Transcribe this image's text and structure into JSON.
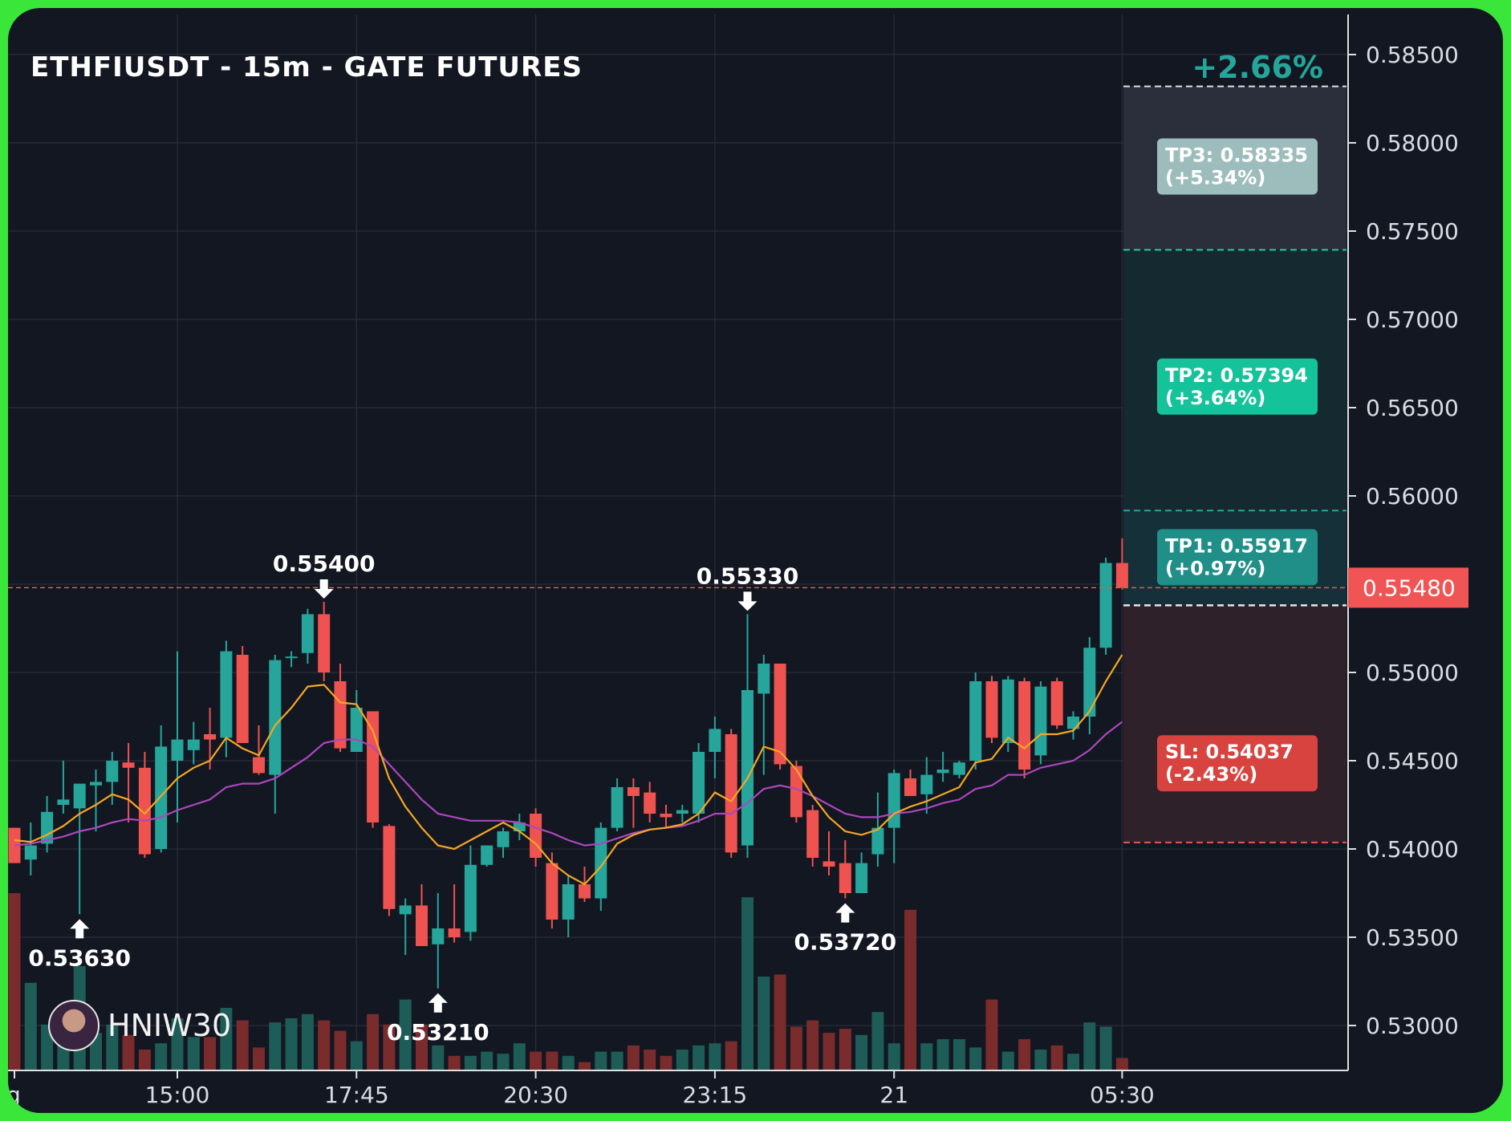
{
  "header": {
    "title": "ETHFIUSDT - 15m - GATE FUTURES",
    "change_pct": "+2.66%"
  },
  "brand": {
    "name": "HNIW30",
    "avatar_icon": "avatar-icon"
  },
  "colors": {
    "bg": "#131722",
    "up": "#26a69a",
    "down": "#ef5350",
    "ma_fast": "#f5a623",
    "ma_slow": "#ab47bc",
    "tp1": "#1f8f87",
    "tp2": "#15c39a",
    "tp3": "#9dbdbc",
    "sl": "#d9433f"
  },
  "chart_data": {
    "type": "candlestick",
    "title": "ETHFIUSDT - 15m - GATE FUTURES",
    "y_ticks": [
      "0.53000",
      "0.53500",
      "0.54000",
      "0.54500",
      "0.55000",
      "0.55500",
      "0.56000",
      "0.56500",
      "0.57000",
      "0.57500",
      "0.58000",
      "0.58500"
    ],
    "ylim": [
      0.5275,
      0.5872
    ],
    "x_tick_labels": [
      {
        "label": "g",
        "index": 0
      },
      {
        "label": "15:00",
        "index": 10
      },
      {
        "label": "17:45",
        "index": 21
      },
      {
        "label": "20:30",
        "index": 32
      },
      {
        "label": "23:15",
        "index": 43
      },
      {
        "label": "21",
        "index": 54
      },
      {
        "label": "05:30",
        "index": 68
      }
    ],
    "current_price": "0.55480",
    "current_price_value": 0.5548,
    "targets": [
      {
        "label": "TP3: 0.58335",
        "pct": "(+5.34%)",
        "value": 0.58335
      },
      {
        "label": "TP2: 0.57394",
        "pct": "(+3.64%)",
        "value": 0.57394
      },
      {
        "label": "TP1: 0.55917",
        "pct": "(+0.97%)",
        "value": 0.55917
      },
      {
        "label": "SL: 0.54037",
        "pct": "(-2.43%)",
        "value": 0.54037
      }
    ],
    "entry_value": 0.5538,
    "top_line_value": 0.5832,
    "annotations": [
      {
        "text": "0.53630",
        "index": 4,
        "value": 0.5363,
        "dir": "low"
      },
      {
        "text": "0.55400",
        "index": 19,
        "value": 0.554,
        "dir": "high"
      },
      {
        "text": "0.53210",
        "index": 26,
        "value": 0.5321,
        "dir": "low"
      },
      {
        "text": "0.55330",
        "index": 45,
        "value": 0.5533,
        "dir": "high"
      },
      {
        "text": "0.53720",
        "index": 51,
        "value": 0.5372,
        "dir": "low"
      }
    ],
    "candles": [
      {
        "o": 0.5412,
        "h": 0.5412,
        "l": 0.5392,
        "c": 0.5392
      },
      {
        "o": 0.5394,
        "h": 0.5415,
        "l": 0.5385,
        "c": 0.5402
      },
      {
        "o": 0.5403,
        "h": 0.543,
        "l": 0.5398,
        "c": 0.5421
      },
      {
        "o": 0.5425,
        "h": 0.545,
        "l": 0.542,
        "c": 0.5428
      },
      {
        "o": 0.5423,
        "h": 0.5435,
        "l": 0.5363,
        "c": 0.5437
      },
      {
        "o": 0.5436,
        "h": 0.5445,
        "l": 0.541,
        "c": 0.5438
      },
      {
        "o": 0.5438,
        "h": 0.5455,
        "l": 0.5425,
        "c": 0.545
      },
      {
        "o": 0.5449,
        "h": 0.546,
        "l": 0.5415,
        "c": 0.5446
      },
      {
        "o": 0.5446,
        "h": 0.5455,
        "l": 0.5395,
        "c": 0.5397
      },
      {
        "o": 0.54,
        "h": 0.547,
        "l": 0.5398,
        "c": 0.5458
      },
      {
        "o": 0.545,
        "h": 0.5512,
        "l": 0.5415,
        "c": 0.5462
      },
      {
        "o": 0.5456,
        "h": 0.5472,
        "l": 0.5448,
        "c": 0.5462
      },
      {
        "o": 0.5465,
        "h": 0.548,
        "l": 0.5445,
        "c": 0.5462
      },
      {
        "o": 0.5463,
        "h": 0.5518,
        "l": 0.5452,
        "c": 0.5512
      },
      {
        "o": 0.551,
        "h": 0.5515,
        "l": 0.546,
        "c": 0.546
      },
      {
        "o": 0.5452,
        "h": 0.547,
        "l": 0.5442,
        "c": 0.5443
      },
      {
        "o": 0.5442,
        "h": 0.551,
        "l": 0.542,
        "c": 0.5507
      },
      {
        "o": 0.5509,
        "h": 0.5512,
        "l": 0.5503,
        "c": 0.5509
      },
      {
        "o": 0.5511,
        "h": 0.5536,
        "l": 0.5505,
        "c": 0.5533
      },
      {
        "o": 0.5533,
        "h": 0.554,
        "l": 0.5495,
        "c": 0.55
      },
      {
        "o": 0.5495,
        "h": 0.5505,
        "l": 0.5455,
        "c": 0.5457
      },
      {
        "o": 0.5455,
        "h": 0.549,
        "l": 0.5455,
        "c": 0.548
      },
      {
        "o": 0.5478,
        "h": 0.5478,
        "l": 0.5412,
        "c": 0.5415
      },
      {
        "o": 0.5413,
        "h": 0.5414,
        "l": 0.5362,
        "c": 0.5366
      },
      {
        "o": 0.5363,
        "h": 0.5372,
        "l": 0.534,
        "c": 0.5368
      },
      {
        "o": 0.5368,
        "h": 0.538,
        "l": 0.5345,
        "c": 0.5345
      },
      {
        "o": 0.5346,
        "h": 0.5375,
        "l": 0.5321,
        "c": 0.5355
      },
      {
        "o": 0.5355,
        "h": 0.538,
        "l": 0.5347,
        "c": 0.535
      },
      {
        "o": 0.5353,
        "h": 0.5402,
        "l": 0.5348,
        "c": 0.5391
      },
      {
        "o": 0.5391,
        "h": 0.5402,
        "l": 0.539,
        "c": 0.5402
      },
      {
        "o": 0.5401,
        "h": 0.5412,
        "l": 0.5395,
        "c": 0.541
      },
      {
        "o": 0.541,
        "h": 0.542,
        "l": 0.5405,
        "c": 0.5415
      },
      {
        "o": 0.542,
        "h": 0.5423,
        "l": 0.539,
        "c": 0.5395
      },
      {
        "o": 0.5392,
        "h": 0.5398,
        "l": 0.5355,
        "c": 0.536
      },
      {
        "o": 0.536,
        "h": 0.5385,
        "l": 0.535,
        "c": 0.538
      },
      {
        "o": 0.538,
        "h": 0.539,
        "l": 0.537,
        "c": 0.5372
      },
      {
        "o": 0.5372,
        "h": 0.5415,
        "l": 0.5365,
        "c": 0.5412
      },
      {
        "o": 0.5412,
        "h": 0.544,
        "l": 0.541,
        "c": 0.5435
      },
      {
        "o": 0.5435,
        "h": 0.544,
        "l": 0.5412,
        "c": 0.543
      },
      {
        "o": 0.5432,
        "h": 0.5438,
        "l": 0.5415,
        "c": 0.542
      },
      {
        "o": 0.542,
        "h": 0.5425,
        "l": 0.5412,
        "c": 0.5418
      },
      {
        "o": 0.542,
        "h": 0.5425,
        "l": 0.5415,
        "c": 0.5422
      },
      {
        "o": 0.542,
        "h": 0.546,
        "l": 0.5415,
        "c": 0.5455
      },
      {
        "o": 0.5455,
        "h": 0.5475,
        "l": 0.544,
        "c": 0.5468
      },
      {
        "o": 0.5465,
        "h": 0.5468,
        "l": 0.5395,
        "c": 0.5398
      },
      {
        "o": 0.5402,
        "h": 0.5533,
        "l": 0.5395,
        "c": 0.549
      },
      {
        "o": 0.5488,
        "h": 0.551,
        "l": 0.5442,
        "c": 0.5505
      },
      {
        "o": 0.5505,
        "h": 0.5505,
        "l": 0.5445,
        "c": 0.5448
      },
      {
        "o": 0.5447,
        "h": 0.545,
        "l": 0.5415,
        "c": 0.5418
      },
      {
        "o": 0.5422,
        "h": 0.5425,
        "l": 0.539,
        "c": 0.5395
      },
      {
        "o": 0.5393,
        "h": 0.541,
        "l": 0.5385,
        "c": 0.539
      },
      {
        "o": 0.5392,
        "h": 0.5405,
        "l": 0.5372,
        "c": 0.5375
      },
      {
        "o": 0.5375,
        "h": 0.5398,
        "l": 0.5375,
        "c": 0.5392
      },
      {
        "o": 0.5397,
        "h": 0.5432,
        "l": 0.539,
        "c": 0.5412
      },
      {
        "o": 0.5412,
        "h": 0.5445,
        "l": 0.5392,
        "c": 0.5443
      },
      {
        "o": 0.544,
        "h": 0.5445,
        "l": 0.543,
        "c": 0.543
      },
      {
        "o": 0.5431,
        "h": 0.5452,
        "l": 0.542,
        "c": 0.5442
      },
      {
        "o": 0.5443,
        "h": 0.5455,
        "l": 0.5438,
        "c": 0.5445
      },
      {
        "o": 0.5442,
        "h": 0.545,
        "l": 0.544,
        "c": 0.5449
      },
      {
        "o": 0.545,
        "h": 0.55,
        "l": 0.5445,
        "c": 0.5495
      },
      {
        "o": 0.5495,
        "h": 0.5498,
        "l": 0.546,
        "c": 0.5463
      },
      {
        "o": 0.546,
        "h": 0.5498,
        "l": 0.5455,
        "c": 0.5496
      },
      {
        "o": 0.5495,
        "h": 0.5497,
        "l": 0.544,
        "c": 0.5445
      },
      {
        "o": 0.5453,
        "h": 0.5495,
        "l": 0.5448,
        "c": 0.5492
      },
      {
        "o": 0.5495,
        "h": 0.5497,
        "l": 0.5468,
        "c": 0.547
      },
      {
        "o": 0.5468,
        "h": 0.5478,
        "l": 0.5462,
        "c": 0.5475
      },
      {
        "o": 0.5475,
        "h": 0.552,
        "l": 0.5465,
        "c": 0.5514
      },
      {
        "o": 0.5514,
        "h": 0.5565,
        "l": 0.551,
        "c": 0.5562
      },
      {
        "o": 0.5562,
        "h": 0.5576,
        "l": 0.5547,
        "c": 0.5548
      }
    ],
    "volumes": [
      0.85,
      0.42,
      0.22,
      0.26,
      0.5,
      0.18,
      0.22,
      0.17,
      0.1,
      0.13,
      0.25,
      0.16,
      0.16,
      0.3,
      0.24,
      0.11,
      0.23,
      0.25,
      0.27,
      0.24,
      0.19,
      0.14,
      0.27,
      0.22,
      0.34,
      0.22,
      0.12,
      0.07,
      0.07,
      0.09,
      0.08,
      0.13,
      0.09,
      0.09,
      0.07,
      0.04,
      0.09,
      0.09,
      0.12,
      0.1,
      0.07,
      0.1,
      0.12,
      0.13,
      0.14,
      0.83,
      0.45,
      0.46,
      0.21,
      0.24,
      0.18,
      0.2,
      0.17,
      0.28,
      0.13,
      0.77,
      0.13,
      0.15,
      0.15,
      0.11,
      0.34,
      0.09,
      0.15,
      0.1,
      0.12,
      0.08,
      0.23,
      0.21,
      0.06
    ],
    "ma_fast": [
      0.5405,
      0.5404,
      0.5408,
      0.5413,
      0.542,
      0.5425,
      0.5431,
      0.5428,
      0.542,
      0.543,
      0.544,
      0.5446,
      0.545,
      0.5463,
      0.5457,
      0.5453,
      0.547,
      0.548,
      0.5492,
      0.5493,
      0.5483,
      0.5482,
      0.5467,
      0.544,
      0.5424,
      0.5412,
      0.5402,
      0.54,
      0.5405,
      0.541,
      0.5415,
      0.541,
      0.5403,
      0.5392,
      0.5385,
      0.538,
      0.539,
      0.5403,
      0.5408,
      0.5411,
      0.5412,
      0.5414,
      0.542,
      0.5432,
      0.5427,
      0.544,
      0.5458,
      0.5455,
      0.5445,
      0.543,
      0.5418,
      0.541,
      0.5408,
      0.5411,
      0.542,
      0.5424,
      0.5427,
      0.5431,
      0.5435,
      0.5449,
      0.5451,
      0.5463,
      0.5457,
      0.5465,
      0.5465,
      0.5467,
      0.5478,
      0.5495,
      0.551
    ],
    "ma_slow": [
      0.5402,
      0.5403,
      0.5405,
      0.5407,
      0.541,
      0.5412,
      0.5415,
      0.5417,
      0.5416,
      0.5418,
      0.5422,
      0.5425,
      0.5428,
      0.5435,
      0.5437,
      0.5437,
      0.544,
      0.5446,
      0.5452,
      0.546,
      0.5462,
      0.5462,
      0.5458,
      0.5448,
      0.5438,
      0.5428,
      0.542,
      0.5418,
      0.5416,
      0.5416,
      0.5416,
      0.5415,
      0.5412,
      0.5409,
      0.5405,
      0.5402,
      0.5403,
      0.5406,
      0.5409,
      0.5411,
      0.5412,
      0.5413,
      0.5416,
      0.542,
      0.542,
      0.5426,
      0.5434,
      0.5436,
      0.5434,
      0.543,
      0.5425,
      0.542,
      0.5418,
      0.5418,
      0.542,
      0.5421,
      0.5423,
      0.5426,
      0.5428,
      0.5434,
      0.5436,
      0.5442,
      0.5442,
      0.5446,
      0.5448,
      0.545,
      0.5456,
      0.5465,
      0.5472
    ]
  }
}
